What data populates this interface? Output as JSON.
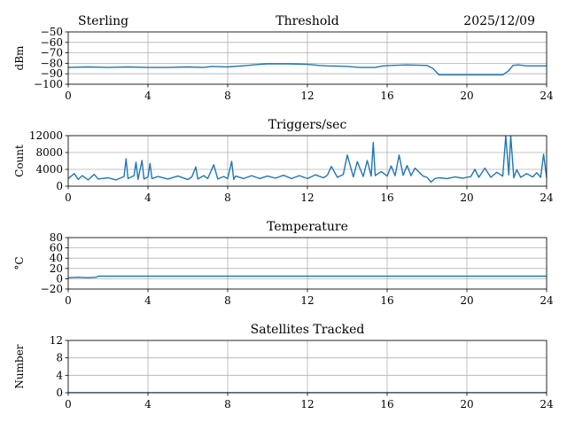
{
  "header": {
    "station": "Sterling",
    "date": "2025/12/09"
  },
  "chart_data": [
    {
      "type": "line",
      "title": "Threshold",
      "ylabel": "dBm",
      "xlim": [
        0,
        24
      ],
      "ylim": [
        -100,
        -50
      ],
      "xticks": [
        0,
        4,
        8,
        12,
        16,
        20,
        24
      ],
      "yticks": [
        -100,
        -90,
        -80,
        -70,
        -60,
        -50
      ],
      "ytick_labels": [
        "−100",
        "−90",
        "−80",
        "−70",
        "−60",
        "−50"
      ],
      "grid": true,
      "color": "#1f77b4",
      "series": [
        {
          "x": [
            0,
            1,
            2,
            3,
            4,
            5,
            6,
            6.8,
            7.2,
            8,
            9,
            9.6,
            10,
            11,
            12,
            12.6,
            13,
            14,
            14.6,
            15.4,
            15.8,
            16.2,
            17,
            18,
            18.3,
            18.6,
            19,
            20,
            21,
            21.8,
            22.1,
            22.3,
            22.6,
            23,
            24
          ],
          "y": [
            -84,
            -83.5,
            -84,
            -83.5,
            -84,
            -84,
            -83.5,
            -84,
            -83,
            -83.5,
            -82,
            -81,
            -80.5,
            -80.5,
            -81,
            -82,
            -82.5,
            -83,
            -84,
            -84,
            -82.5,
            -82,
            -81.5,
            -82,
            -85,
            -91,
            -91,
            -91,
            -91,
            -91,
            -87,
            -82,
            -81.5,
            -82.5,
            -82.5
          ]
        }
      ]
    },
    {
      "type": "line",
      "title": "Triggers/sec",
      "ylabel": "Count",
      "xlim": [
        0,
        24
      ],
      "ylim": [
        0,
        12000
      ],
      "xticks": [
        0,
        4,
        8,
        12,
        16,
        20,
        24
      ],
      "yticks": [
        0,
        4000,
        8000,
        12000
      ],
      "ytick_labels": [
        "0",
        "4000",
        "8000",
        "12000"
      ],
      "grid": true,
      "color": "#1f77b4",
      "series": [
        {
          "x": [
            0,
            0.3,
            0.5,
            0.7,
            1,
            1.3,
            1.5,
            2,
            2.4,
            2.8,
            2.9,
            3,
            3.3,
            3.4,
            3.5,
            3.7,
            3.8,
            4,
            4.1,
            4.2,
            4.5,
            5,
            5.5,
            6,
            6.2,
            6.4,
            6.5,
            6.8,
            7,
            7.3,
            7.5,
            7.8,
            8,
            8.2,
            8.3,
            8.4,
            8.8,
            9.2,
            9.6,
            10,
            10.4,
            10.8,
            11.2,
            11.6,
            12,
            12.4,
            12.8,
            13,
            13.2,
            13.5,
            13.8,
            14,
            14.3,
            14.5,
            14.8,
            15,
            15.2,
            15.3,
            15.4,
            15.7,
            16,
            16.2,
            16.4,
            16.6,
            16.8,
            17,
            17.2,
            17.4,
            17.8,
            18,
            18.2,
            18.4,
            18.6,
            19,
            19.4,
            19.8,
            20.2,
            20.4,
            20.6,
            20.9,
            21.2,
            21.5,
            21.8,
            21.95,
            22.1,
            22.2,
            22.35,
            22.5,
            22.7,
            23,
            23.3,
            23.5,
            23.7,
            23.85,
            24
          ],
          "y": [
            1800,
            3000,
            1600,
            2500,
            1500,
            2800,
            1700,
            2000,
            1500,
            2300,
            6500,
            1800,
            2500,
            5700,
            1600,
            6100,
            1700,
            2200,
            5400,
            1800,
            2300,
            1700,
            2400,
            1600,
            2200,
            4600,
            1700,
            2500,
            1800,
            5100,
            1700,
            2300,
            1800,
            5900,
            1600,
            2400,
            1800,
            2500,
            1800,
            2400,
            1900,
            2600,
            1800,
            2500,
            1800,
            2700,
            2000,
            2600,
            4700,
            2100,
            2800,
            7400,
            2200,
            5800,
            2300,
            6100,
            2400,
            10400,
            2500,
            3500,
            2400,
            4800,
            2500,
            7400,
            2600,
            4900,
            2500,
            4300,
            2400,
            2100,
            1000,
            1800,
            2000,
            1800,
            2200,
            1900,
            2300,
            4000,
            2100,
            4300,
            2100,
            3300,
            2400,
            12000,
            2700,
            12000,
            2000,
            3900,
            2100,
            3000,
            2200,
            3200,
            2100,
            7600,
            2000
          ]
        }
      ]
    },
    {
      "type": "line",
      "title": "Temperature",
      "ylabel": "°C",
      "xlim": [
        0,
        24
      ],
      "ylim": [
        -20,
        80
      ],
      "xticks": [
        0,
        4,
        8,
        12,
        16,
        20,
        24
      ],
      "yticks": [
        -20,
        0,
        20,
        40,
        60,
        80
      ],
      "ytick_labels": [
        "−20",
        "0",
        "20",
        "40",
        "60",
        "80"
      ],
      "grid": true,
      "color": "#1f77b4",
      "series": [
        {
          "x": [
            0,
            0.5,
            1,
            1.4,
            1.5,
            24
          ],
          "y": [
            2,
            3,
            2,
            3,
            5,
            5
          ]
        }
      ]
    },
    {
      "type": "line",
      "title": "Satellites Tracked",
      "ylabel": "Number",
      "xlim": [
        0,
        24
      ],
      "ylim": [
        0,
        12
      ],
      "xticks": [
        0,
        4,
        8,
        12,
        16,
        20,
        24
      ],
      "yticks": [
        0,
        4,
        8,
        12
      ],
      "ytick_labels": [
        "0",
        "4",
        "8",
        "12"
      ],
      "grid": true,
      "color": "#1f77b4",
      "series": [
        {
          "x": [
            0,
            24
          ],
          "y": [
            0,
            0
          ]
        }
      ]
    }
  ]
}
